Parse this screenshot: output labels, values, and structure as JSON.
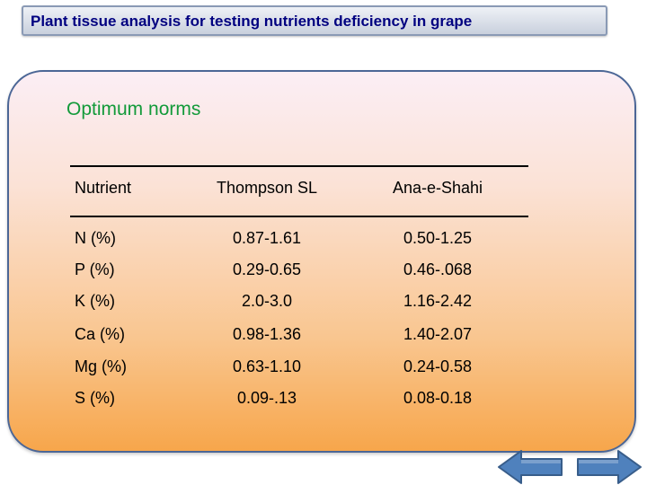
{
  "slide": {
    "title": "Plant tissue analysis  for testing nutrients deficiency in grape"
  },
  "panel": {
    "heading": "Optimum norms"
  },
  "table": {
    "headers": [
      "Nutrient",
      "Thompson SL",
      "Ana-e-Shahi"
    ],
    "rows": [
      [
        "N (%)",
        "0.87-1.61",
        "0.50-1.25"
      ],
      [
        "P (%)",
        "0.29-0.65",
        "0.46-.068"
      ],
      [
        "K (%)",
        "2.0-3.0",
        "1.16-2.42"
      ],
      [
        "Ca (%)",
        "0.98-1.36",
        "1.40-2.07"
      ],
      [
        "Mg (%)",
        "0.63-1.10",
        "0.24-0.58"
      ],
      [
        "S (%)",
        "0.09-.13",
        "0.08-0.18"
      ]
    ]
  },
  "navigation": {
    "back_icon": "left-arrow-icon",
    "forward_icon": "right-arrow-icon",
    "arrow_fill": "#4f81bd",
    "arrow_stroke": "#385d8a"
  }
}
